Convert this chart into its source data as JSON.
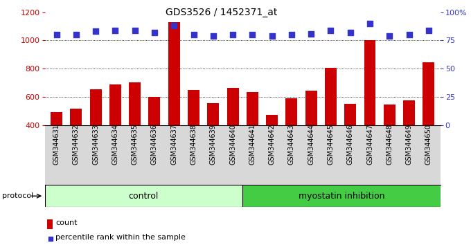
{
  "title": "GDS3526 / 1452371_at",
  "samples": [
    "GSM344631",
    "GSM344632",
    "GSM344633",
    "GSM344634",
    "GSM344635",
    "GSM344636",
    "GSM344637",
    "GSM344638",
    "GSM344639",
    "GSM344640",
    "GSM344641",
    "GSM344642",
    "GSM344643",
    "GSM344644",
    "GSM344645",
    "GSM344646",
    "GSM344647",
    "GSM344648",
    "GSM344649",
    "GSM344650"
  ],
  "counts": [
    490,
    515,
    655,
    690,
    700,
    600,
    1130,
    650,
    555,
    665,
    635,
    470,
    590,
    645,
    805,
    550,
    1000,
    545,
    575,
    845
  ],
  "percentile_ranks": [
    80,
    80,
    83,
    84,
    84,
    82,
    88,
    80,
    79,
    80,
    80,
    79,
    80,
    81,
    84,
    82,
    90,
    79,
    80,
    84
  ],
  "control_count": 10,
  "bar_color": "#cc0000",
  "dot_color": "#3333cc",
  "control_bg": "#ccffcc",
  "myostatin_bg": "#44cc44",
  "control_label": "control",
  "myostatin_label": "myostatin inhibition",
  "protocol_label": "protocol",
  "legend_count": "count",
  "legend_percentile": "percentile rank within the sample",
  "ylim_left": [
    400,
    1200
  ],
  "ylim_right": [
    0,
    100
  ],
  "yticks_left": [
    400,
    600,
    800,
    1000,
    1200
  ],
  "yticks_right": [
    0,
    25,
    50,
    75,
    100
  ],
  "grid_values": [
    600,
    800,
    1000
  ],
  "plot_bg": "#ffffff",
  "tick_area_bg": "#d8d8d8"
}
